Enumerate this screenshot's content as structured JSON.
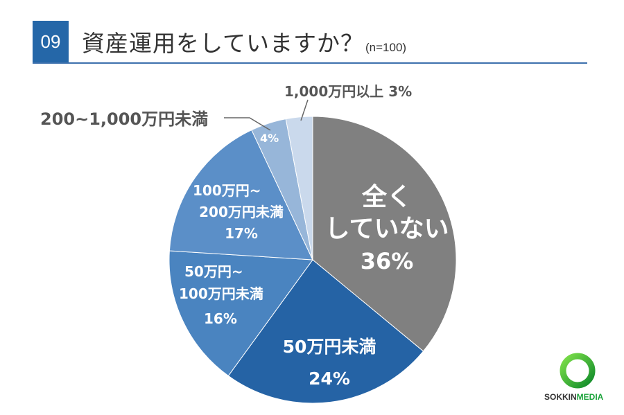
{
  "header": {
    "number": "09",
    "title": "資産運用をしていますか？",
    "sample": "(n=100)"
  },
  "chart_data": {
    "type": "pie",
    "title": "資産運用をしていますか？",
    "subtitle": "(n=100)",
    "start_angle": "12 o'clock, clockwise",
    "slices": [
      {
        "label": "全くしていない",
        "value": 36,
        "color": "#808080"
      },
      {
        "label": "50万円未満",
        "value": 24,
        "color": "#2563a5"
      },
      {
        "label": "50万円~100万円未満",
        "value": 16,
        "color": "#4a84c0"
      },
      {
        "label": "100万円~200万円未満",
        "value": 17,
        "color": "#5b8fc8"
      },
      {
        "label": "200~1,000万円未満",
        "value": 4,
        "color": "#97b6d9"
      },
      {
        "label": "1,000万円以上",
        "value": 3,
        "color": "#cad9ec"
      }
    ]
  },
  "labels": {
    "s0": {
      "l1": "全く",
      "l2": "していない",
      "pct": "36%"
    },
    "s1": {
      "l1": "50万円未満",
      "pct": "24%"
    },
    "s2": {
      "l1": "50万円~",
      "l2": "100万円未満",
      "pct": "16%"
    },
    "s3": {
      "l1": "100万円~",
      "l2": "200万円未満",
      "pct": "17%"
    },
    "s4": {
      "pct": "4%",
      "ext": "200~1,000万円未満"
    },
    "s5": {
      "ext": "1,000万円以上 3%"
    }
  },
  "logo": {
    "part1": "SOKKIN",
    "part2": "MEDIA"
  }
}
